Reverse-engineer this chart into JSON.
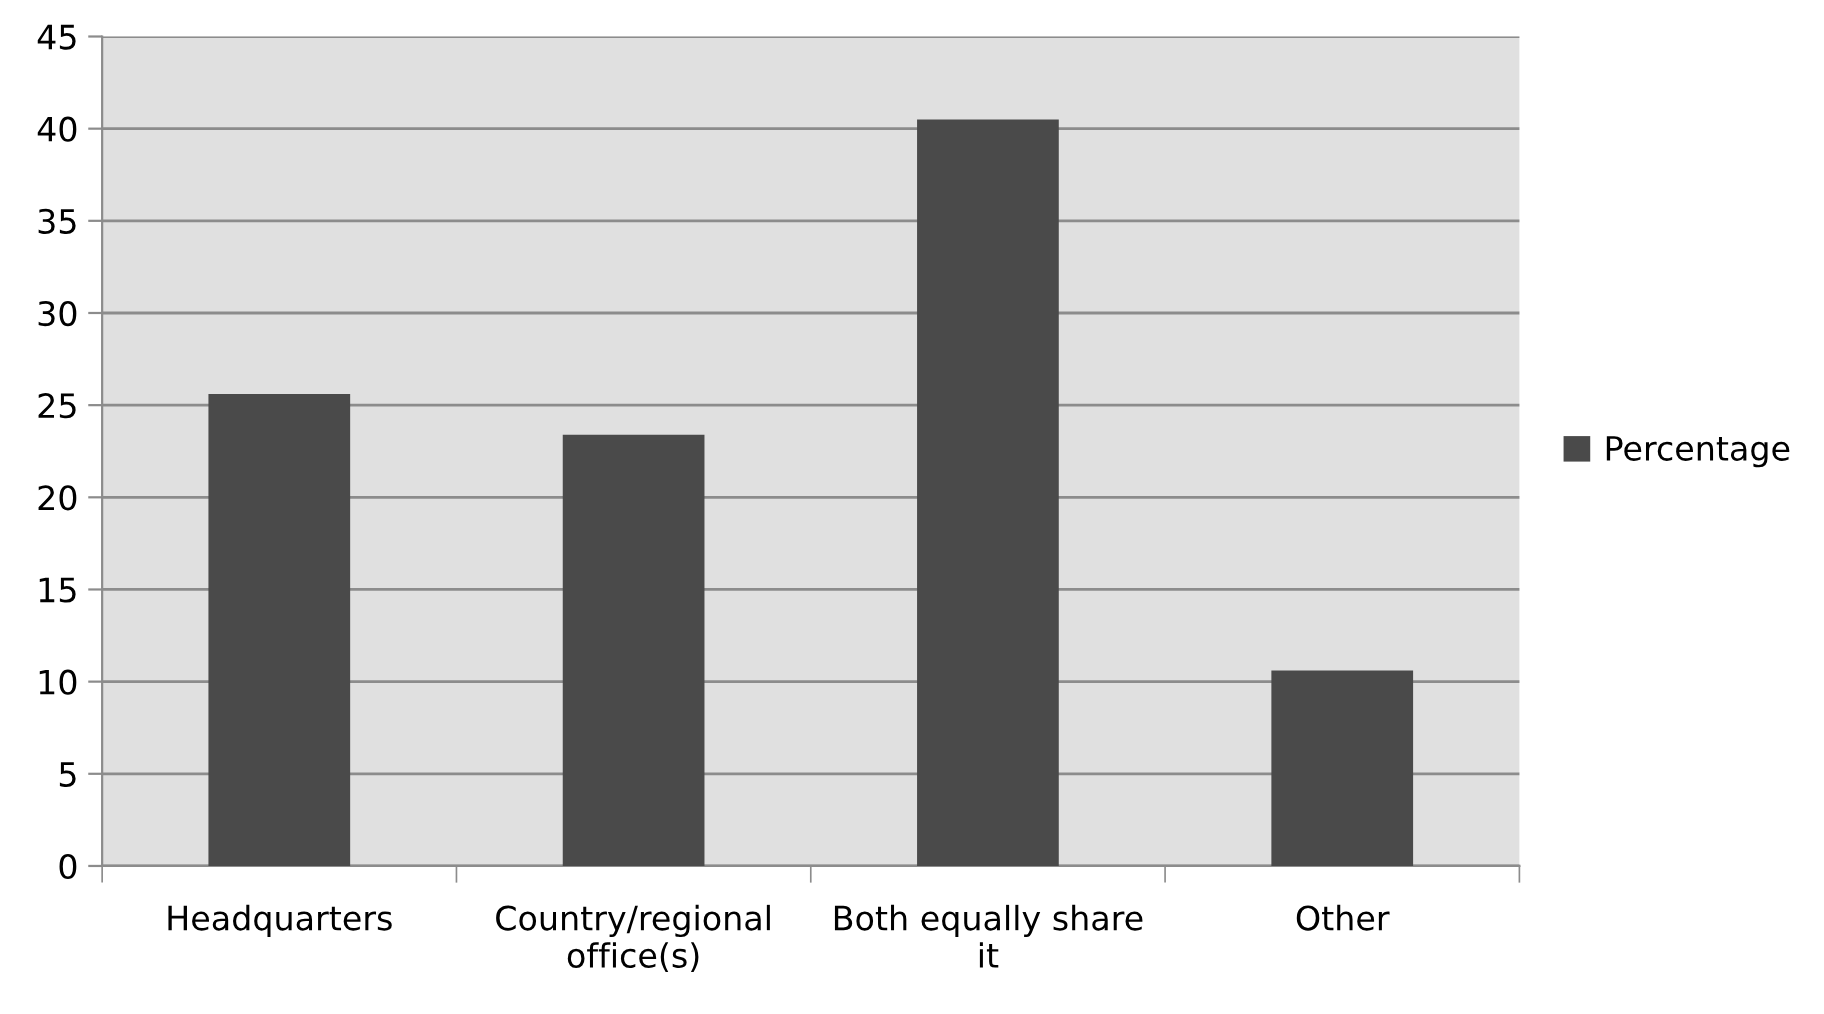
{
  "chart_data": {
    "type": "bar",
    "categories": [
      "Headquarters",
      "Country/regional\noffice(s)",
      "Both equally share\nit",
      "Other"
    ],
    "series": [
      {
        "name": "Percentage",
        "color": "#4a4a4a",
        "values": [
          25.6,
          23.4,
          40.5,
          10.6
        ]
      }
    ],
    "ylim": [
      0,
      45
    ],
    "yticks": [
      0,
      5,
      10,
      15,
      20,
      25,
      30,
      35,
      40,
      45
    ],
    "grid": "y",
    "legend": "right"
  }
}
